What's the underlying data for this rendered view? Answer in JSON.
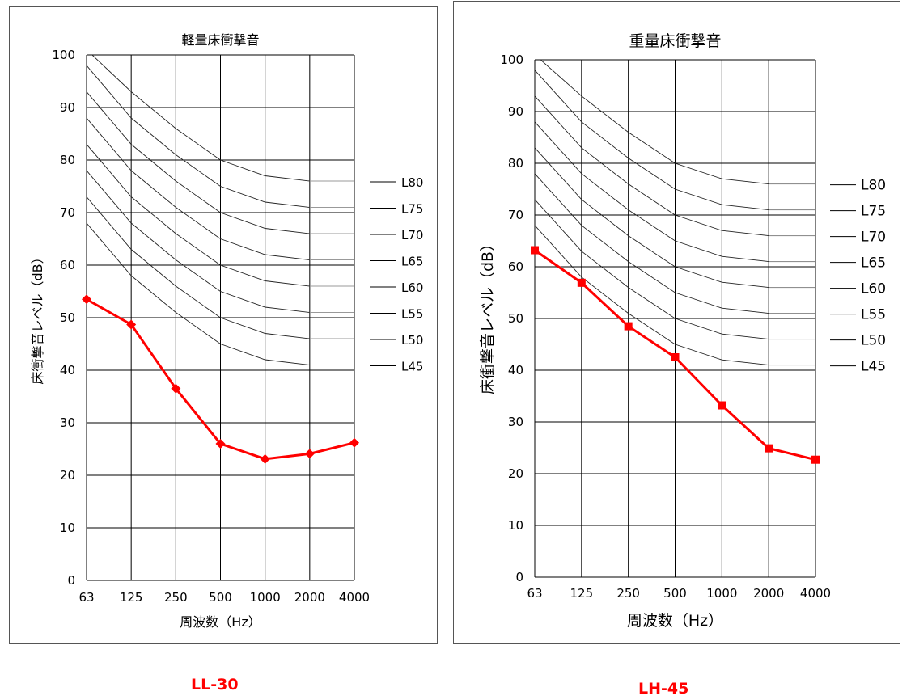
{
  "chart_data": [
    {
      "type": "line",
      "title": "軽量床衝撃音",
      "xlabel": "周波数（Hz）",
      "ylabel": "床衝撃音レベル（dB）",
      "categories": [
        "63",
        "125",
        "250",
        "500",
        "1000",
        "2000",
        "4000"
      ],
      "ylim": [
        0,
        100
      ],
      "yticks": [
        0,
        10,
        20,
        30,
        40,
        50,
        60,
        70,
        80,
        90,
        100
      ],
      "grid": true,
      "caption": "LL-30",
      "series": [
        {
          "values": [
            53.5,
            48.7,
            36.5,
            26.0,
            23.1,
            24.1,
            26.2
          ],
          "color": "#ff0000",
          "marker": "diamond"
        }
      ],
      "reference_curves": [
        {
          "name": "L80",
          "values": [
            101,
            93,
            86,
            80,
            77,
            76,
            76
          ]
        },
        {
          "name": "L75",
          "values": [
            98,
            88,
            81,
            75,
            72,
            71,
            71
          ]
        },
        {
          "name": "L70",
          "values": [
            93,
            83,
            76,
            70,
            67,
            66,
            66
          ]
        },
        {
          "name": "L65",
          "values": [
            88,
            78,
            71,
            65,
            62,
            61,
            61
          ]
        },
        {
          "name": "L60",
          "values": [
            83,
            73,
            66,
            60,
            57,
            56,
            56
          ]
        },
        {
          "name": "L55",
          "values": [
            78,
            68,
            61,
            55,
            52,
            51,
            51
          ]
        },
        {
          "name": "L50",
          "values": [
            73,
            63,
            56,
            50,
            47,
            46,
            46
          ]
        },
        {
          "name": "L45",
          "values": [
            68,
            58,
            51,
            45,
            42,
            41,
            41
          ]
        }
      ]
    },
    {
      "type": "line",
      "title": "重量床衝撃音",
      "xlabel": "周波数（Hz）",
      "ylabel": "床衝撃音レベル（dB）",
      "categories": [
        "63",
        "125",
        "250",
        "500",
        "1000",
        "2000",
        "4000"
      ],
      "ylim": [
        0,
        100
      ],
      "yticks": [
        0,
        10,
        20,
        30,
        40,
        50,
        60,
        70,
        80,
        90,
        100
      ],
      "grid": true,
      "caption": "LH-45",
      "series": [
        {
          "values": [
            63.2,
            56.9,
            48.5,
            42.5,
            33.2,
            24.9,
            22.7
          ],
          "color": "#ff0000",
          "marker": "square"
        }
      ],
      "reference_curves": [
        {
          "name": "L80",
          "values": [
            101,
            93,
            86,
            80,
            77,
            76,
            76
          ]
        },
        {
          "name": "L75",
          "values": [
            98,
            88,
            81,
            75,
            72,
            71,
            71
          ]
        },
        {
          "name": "L70",
          "values": [
            93,
            83,
            76,
            70,
            67,
            66,
            66
          ]
        },
        {
          "name": "L65",
          "values": [
            88,
            78,
            71,
            65,
            62,
            61,
            61
          ]
        },
        {
          "name": "L60",
          "values": [
            83,
            73,
            66,
            60,
            57,
            56,
            56
          ]
        },
        {
          "name": "L55",
          "values": [
            78,
            68,
            61,
            55,
            52,
            51,
            51
          ]
        },
        {
          "name": "L50",
          "values": [
            73,
            63,
            56,
            50,
            47,
            46,
            46
          ]
        },
        {
          "name": "L45",
          "values": [
            68,
            58,
            51,
            45,
            42,
            41,
            41
          ]
        }
      ]
    }
  ]
}
